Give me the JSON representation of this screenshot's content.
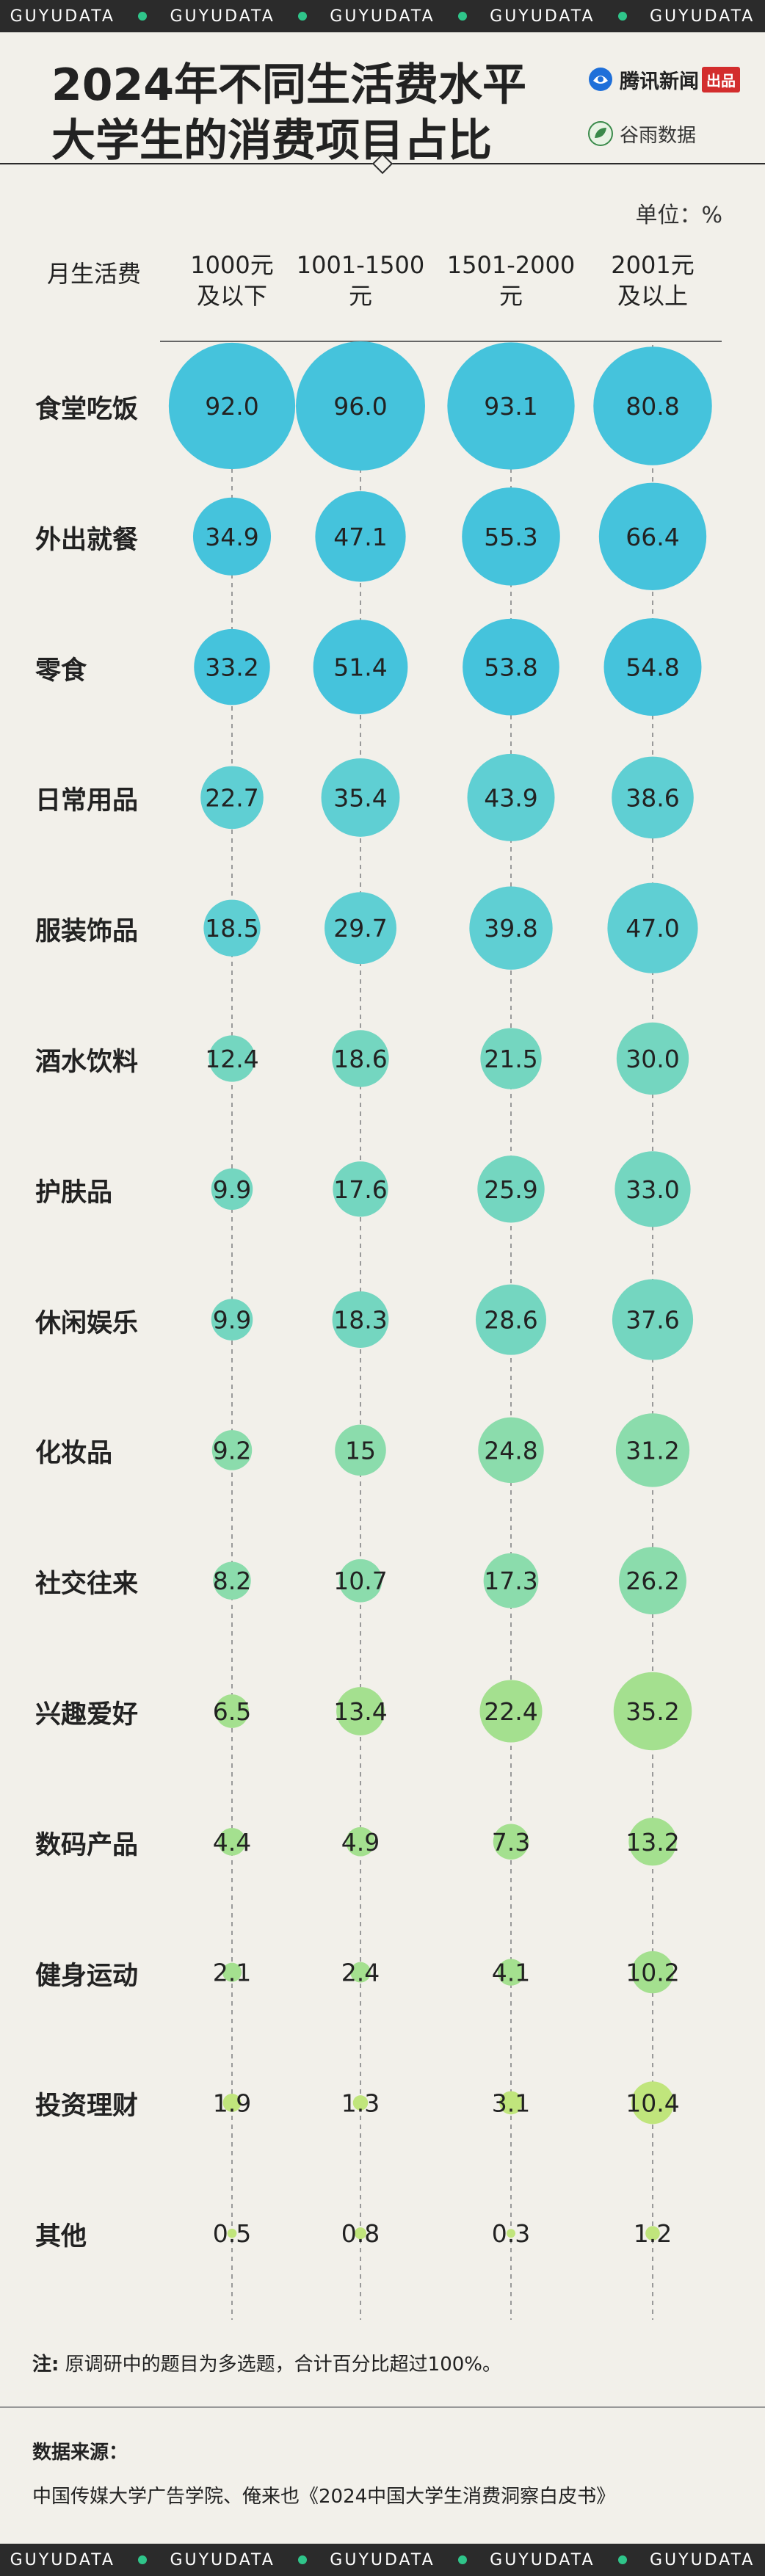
{
  "brand": {
    "word": "GUYUDATA"
  },
  "title": {
    "line1": "2024年不同生活费水平",
    "line2": "大学生的消费项目占比"
  },
  "logos": {
    "tencent_name": "腾讯新闻",
    "tencent_badge": "出品",
    "guyu_name": "谷雨数据"
  },
  "unit": "单位：%",
  "header_label": "月生活费",
  "columns": [
    {
      "line1": "1000元",
      "line2": "及以下"
    },
    {
      "line1": "1001-1500",
      "line2": "元"
    },
    {
      "line1": "1501-2000",
      "line2": "元"
    },
    {
      "line1": "2001元",
      "line2": "及以上"
    }
  ],
  "note": {
    "label": "注:",
    "text": " 原调研中的题目为多选题，合计百分比超过100%。"
  },
  "source": {
    "title": "数据来源：",
    "text": "中国传媒大学广告学院、俺来也《2024中国大学生消费洞察白皮书》"
  },
  "chart_data": {
    "type": "bubble-matrix",
    "title": "2024年不同生活费水平大学生的消费项目占比",
    "unit": "%",
    "categories": [
      "1000元及以下",
      "1001-1500元",
      "1501-2000元",
      "2001元及以上"
    ],
    "rows": [
      {
        "label": "食堂吃饭",
        "values": [
          92.0,
          96.0,
          93.1,
          80.8
        ],
        "display": [
          "92.0",
          "96.0",
          "93.1",
          "80.8"
        ]
      },
      {
        "label": "外出就餐",
        "values": [
          34.9,
          47.1,
          55.3,
          66.4
        ],
        "display": [
          "34.9",
          "47.1",
          "55.3",
          "66.4"
        ]
      },
      {
        "label": "零食",
        "values": [
          33.2,
          51.4,
          53.8,
          54.8
        ],
        "display": [
          "33.2",
          "51.4",
          "53.8",
          "54.8"
        ]
      },
      {
        "label": "日常用品",
        "values": [
          22.7,
          35.4,
          43.9,
          38.6
        ],
        "display": [
          "22.7",
          "35.4",
          "43.9",
          "38.6"
        ]
      },
      {
        "label": "服装饰品",
        "values": [
          18.5,
          29.7,
          39.8,
          47.0
        ],
        "display": [
          "18.5",
          "29.7",
          "39.8",
          "47.0"
        ]
      },
      {
        "label": "酒水饮料",
        "values": [
          12.4,
          18.6,
          21.5,
          30.0
        ],
        "display": [
          "12.4",
          "18.6",
          "21.5",
          "30.0"
        ]
      },
      {
        "label": "护肤品",
        "values": [
          9.9,
          17.6,
          25.9,
          33.0
        ],
        "display": [
          "9.9",
          "17.6",
          "25.9",
          "33.0"
        ]
      },
      {
        "label": "休闲娱乐",
        "values": [
          9.9,
          18.3,
          28.6,
          37.6
        ],
        "display": [
          "9.9",
          "18.3",
          "28.6",
          "37.6"
        ]
      },
      {
        "label": "化妆品",
        "values": [
          9.2,
          15,
          24.8,
          31.2
        ],
        "display": [
          "9.2",
          "15",
          "24.8",
          "31.2"
        ]
      },
      {
        "label": "社交往来",
        "values": [
          8.2,
          10.7,
          17.3,
          26.2
        ],
        "display": [
          "8.2",
          "10.7",
          "17.3",
          "26.2"
        ]
      },
      {
        "label": "兴趣爱好",
        "values": [
          6.5,
          13.4,
          22.4,
          35.2
        ],
        "display": [
          "6.5",
          "13.4",
          "22.4",
          "35.2"
        ]
      },
      {
        "label": "数码产品",
        "values": [
          4.4,
          4.9,
          7.3,
          13.2
        ],
        "display": [
          "4.4",
          "4.9",
          "7.3",
          "13.2"
        ]
      },
      {
        "label": "健身运动",
        "values": [
          2.1,
          2.4,
          4.1,
          10.2
        ],
        "display": [
          "2.1",
          "2.4",
          "4.1",
          "10.2"
        ]
      },
      {
        "label": "投资理财",
        "values": [
          1.9,
          1.3,
          3.1,
          10.4
        ],
        "display": [
          "1.9",
          "1.3",
          "3.1",
          "10.4"
        ]
      },
      {
        "label": "其他",
        "values": [
          0.5,
          0.8,
          0.3,
          1.2
        ],
        "display": [
          "0.5",
          "0.8",
          "0.3",
          "1.2"
        ]
      }
    ],
    "color_scale": [
      "#45c3dc",
      "#5fcfd3",
      "#74d6c0",
      "#8bdcac",
      "#a4e08f",
      "#c0e57c"
    ]
  }
}
